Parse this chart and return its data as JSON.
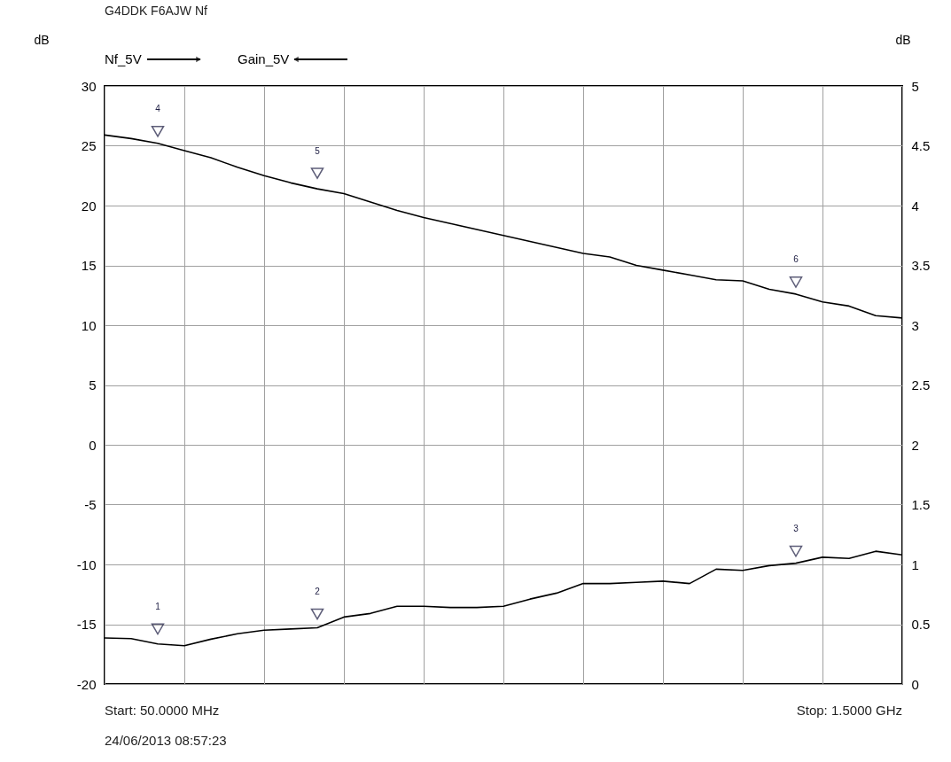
{
  "chart_data": {
    "type": "line",
    "title": "G4DDK F6AJW Nf",
    "ylabel": "dB",
    "y2label": "dB",
    "categories": [
      null,
      null,
      null,
      null,
      null,
      null,
      null,
      null,
      null,
      null,
      null,
      null,
      null,
      null,
      null,
      null,
      null,
      null,
      null,
      null,
      null,
      null,
      null,
      null,
      null,
      null,
      null,
      null,
      null,
      null,
      null
    ],
    "ylim": [
      -20,
      30
    ],
    "yticks": [
      -20,
      -15,
      -10,
      -5,
      0,
      5,
      10,
      15,
      20,
      25,
      30
    ],
    "y2lim": [
      0,
      5
    ],
    "y2ticks": [
      0,
      0.5,
      1,
      1.5,
      2,
      2.5,
      3,
      3.5,
      4,
      4.5,
      5
    ],
    "grid": true,
    "legend": "top left",
    "series": [
      {
        "name": "Nf_5V",
        "color": "#000000",
        "axis": "y2",
        "values": [
          0.385,
          0.38,
          0.335,
          0.32,
          0.375,
          0.42,
          0.45,
          0.46,
          0.47,
          0.56,
          0.59,
          0.65,
          0.65,
          0.64,
          0.64,
          0.65,
          0.71,
          0.76,
          0.84,
          0.84,
          0.85,
          0.86,
          0.84,
          0.96,
          0.95,
          0.99,
          1.01,
          1.06,
          1.05,
          1.11,
          1.08
        ],
        "marker": "none"
      },
      {
        "name": "Gain_5V",
        "color": "#000000",
        "values": [
          25.9,
          25.6,
          25.2,
          24.6,
          24.0,
          23.2,
          22.5,
          21.9,
          21.4,
          21.0,
          20.3,
          19.6,
          19.0,
          18.5,
          18.0,
          17.5,
          17.0,
          16.5,
          16.0,
          15.7,
          15.0,
          14.6,
          14.2,
          13.8,
          13.7,
          13.0,
          12.6,
          11.95,
          11.6,
          10.8,
          10.6
        ],
        "marker": "none"
      },
      {
        "type": "scatter",
        "color": "#1a1a40",
        "axis": "y2",
        "marker": "triangle",
        "values": [
          null,
          null,
          0.46,
          null,
          null,
          null,
          null,
          null,
          0.585,
          null,
          null,
          null,
          null,
          null,
          null,
          null,
          null,
          null,
          null,
          null,
          null,
          null,
          null,
          null,
          null,
          null,
          1.11,
          null,
          null,
          null,
          null
        ]
      },
      {
        "type": "scatter",
        "color": "#1a1a40",
        "marker": "triangle",
        "values": [
          null,
          null,
          26.2,
          null,
          null,
          null,
          null,
          null,
          22.7,
          null,
          null,
          null,
          null,
          null,
          null,
          null,
          null,
          null,
          null,
          null,
          null,
          null,
          null,
          null,
          null,
          null,
          13.6,
          null,
          null,
          null,
          null
        ]
      }
    ],
    "annotations": [
      "Start: 50.0000 MHz",
      "Stop: 1.5000 GHz",
      "24/06/2013 08:57:23",
      "1",
      "2",
      "3",
      "4",
      "5",
      "6"
    ]
  }
}
